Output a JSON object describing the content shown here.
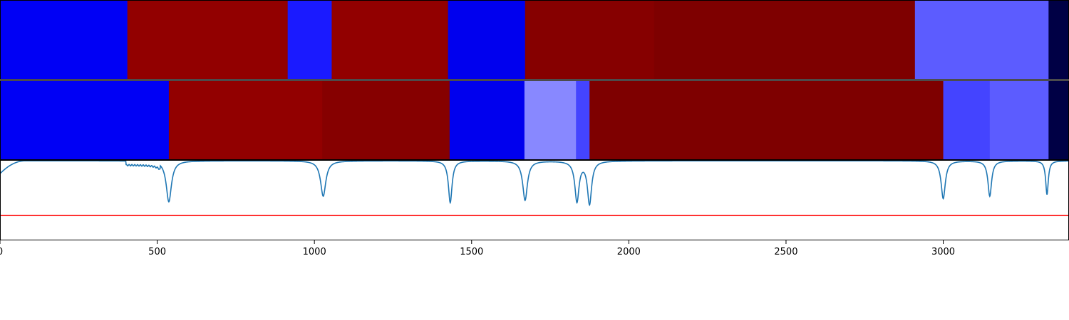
{
  "chart_data": [
    {
      "type": "heatmap",
      "title": "",
      "xlim": [
        0,
        3400
      ],
      "segments": [
        {
          "start": 0,
          "end": 405,
          "color": "#0000f5"
        },
        {
          "start": 405,
          "end": 915,
          "color": "#920000"
        },
        {
          "start": 915,
          "end": 1055,
          "color": "#1a1aff"
        },
        {
          "start": 1055,
          "end": 1425,
          "color": "#920000"
        },
        {
          "start": 1425,
          "end": 1670,
          "color": "#0000ee"
        },
        {
          "start": 1670,
          "end": 2080,
          "color": "#860000"
        },
        {
          "start": 2080,
          "end": 2910,
          "color": "#7e0000"
        },
        {
          "start": 2910,
          "end": 3335,
          "color": "#5c5cff"
        },
        {
          "start": 3335,
          "end": 3400,
          "color": "#000045"
        }
      ]
    },
    {
      "type": "heatmap",
      "title": "",
      "xlim": [
        0,
        3400
      ],
      "segments": [
        {
          "start": 0,
          "end": 537,
          "color": "#0000f5"
        },
        {
          "start": 537,
          "end": 1025,
          "color": "#920000"
        },
        {
          "start": 1025,
          "end": 1430,
          "color": "#860000"
        },
        {
          "start": 1430,
          "end": 1668,
          "color": "#0000ee"
        },
        {
          "start": 1668,
          "end": 1832,
          "color": "#8888ff"
        },
        {
          "start": 1832,
          "end": 1875,
          "color": "#4444ff"
        },
        {
          "start": 1875,
          "end": 3000,
          "color": "#7e0000"
        },
        {
          "start": 3000,
          "end": 3148,
          "color": "#4444ff"
        },
        {
          "start": 3148,
          "end": 3335,
          "color": "#5c5cff"
        },
        {
          "start": 3335,
          "end": 3400,
          "color": "#000045"
        }
      ]
    },
    {
      "type": "line",
      "title": "",
      "xlabel": "",
      "ylabel": "",
      "xlim": [
        0,
        3400
      ],
      "ylim": [
        0,
        1
      ],
      "x_ticks": [
        0,
        500,
        1000,
        1500,
        2000,
        2500,
        3000
      ],
      "threshold": 0.31,
      "line_color": "#1f77b4",
      "threshold_color": "#ff0000",
      "baseline": 0.99,
      "start_dip": {
        "x0": 0,
        "x1": 80,
        "y0": 0.83
      },
      "shelf": {
        "x0": 400,
        "x1": 510,
        "depth": 0.06
      },
      "dips": [
        {
          "x": 537,
          "min": 0.48,
          "width": 10
        },
        {
          "x": 1028,
          "min": 0.55,
          "width": 10
        },
        {
          "x": 1432,
          "min": 0.47,
          "width": 7
        },
        {
          "x": 1670,
          "min": 0.5,
          "width": 9
        },
        {
          "x": 1835,
          "min": 0.49,
          "width": 8
        },
        {
          "x": 1875,
          "min": 0.46,
          "width": 8
        },
        {
          "x": 3000,
          "min": 0.52,
          "width": 8
        },
        {
          "x": 3148,
          "min": 0.55,
          "width": 7
        },
        {
          "x": 3330,
          "min": 0.57,
          "width": 5
        }
      ]
    }
  ]
}
